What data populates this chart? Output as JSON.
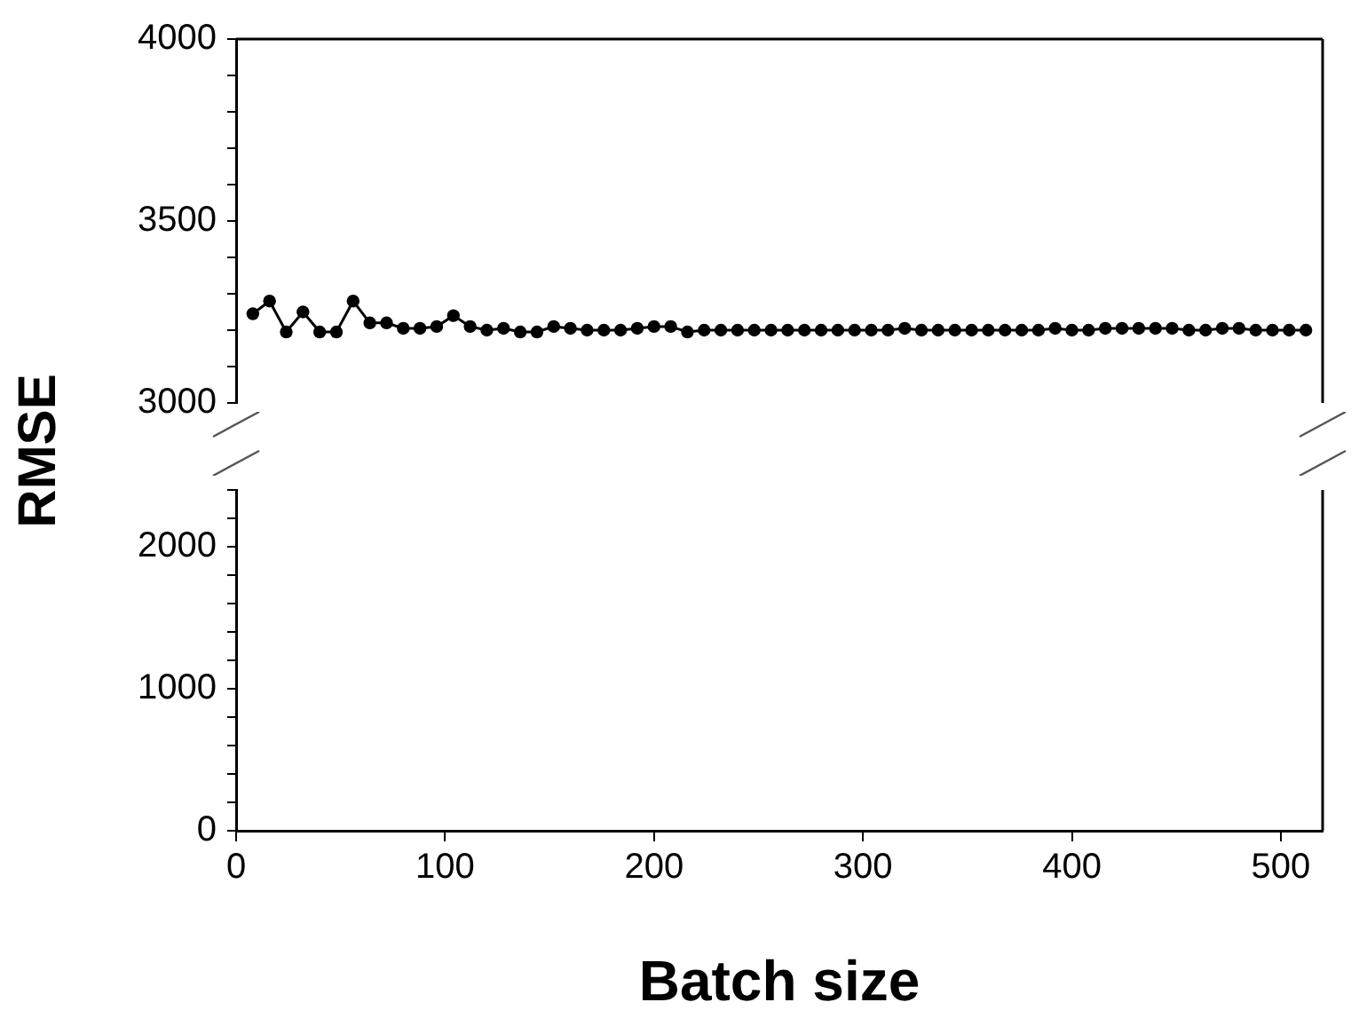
{
  "chart_data": [
    {
      "type": "line",
      "ylabel": "RMSE",
      "marker": "circle",
      "line_style": "solid",
      "color": "#000000",
      "tick_labels": "y",
      "x": [
        8,
        16,
        24,
        32,
        40,
        48,
        56,
        64,
        72,
        80,
        88,
        96,
        104,
        112,
        120,
        128,
        136,
        144,
        152,
        160,
        168,
        176,
        184,
        192,
        200,
        208,
        216,
        224,
        232,
        240,
        248,
        256,
        264,
        272,
        280,
        288,
        296,
        304,
        312,
        320,
        328,
        336,
        344,
        352,
        360,
        368,
        376,
        384,
        392,
        400,
        408,
        416,
        424,
        432,
        440,
        448,
        456,
        464,
        472,
        480,
        488,
        496,
        504,
        512
      ],
      "values": [
        3245,
        3280,
        3195,
        3250,
        3195,
        3195,
        3280,
        3220,
        3220,
        3205,
        3205,
        3210,
        3240,
        3210,
        3200,
        3205,
        3195,
        3195,
        3210,
        3205,
        3200,
        3200,
        3200,
        3205,
        3210,
        3210,
        3195,
        3200,
        3200,
        3200,
        3200,
        3200,
        3200,
        3200,
        3200,
        3200,
        3200,
        3200,
        3200,
        3205,
        3200,
        3200,
        3200,
        3200,
        3200,
        3200,
        3200,
        3200,
        3205,
        3200,
        3200,
        3205,
        3205,
        3205,
        3205,
        3205,
        3200,
        3200,
        3205,
        3205,
        3200,
        3200,
        3200,
        3200
      ],
      "xlim": [
        0,
        520
      ],
      "xticks": [
        0,
        100,
        200,
        300,
        400,
        500
      ],
      "ylim": [
        3000,
        4000
      ],
      "yticks": [
        3000,
        {
          "value": 3100,
          "label": null
        },
        {
          "value": 3200,
          "label": null
        },
        {
          "value": 3300,
          "label": null
        },
        {
          "value": 3400,
          "label": null
        },
        3500,
        {
          "value": 3600,
          "label": null
        },
        {
          "value": 3700,
          "label": null
        },
        {
          "value": 3800,
          "label": null
        },
        {
          "value": 3900,
          "label": null
        },
        4000
      ]
    },
    {
      "type": "line",
      "xlabel": "Batch size",
      "xlim": [
        0,
        520
      ],
      "xticks": [
        0,
        100,
        200,
        300,
        400,
        500
      ],
      "ylim": [
        0,
        2400
      ],
      "yticks": [
        0,
        {
          "value": 200,
          "label": null
        },
        {
          "value": 400,
          "label": null
        },
        {
          "value": 600,
          "label": null
        },
        {
          "value": 800,
          "label": null
        },
        1000,
        {
          "value": 1200,
          "label": null
        },
        {
          "value": 1400,
          "label": null
        },
        {
          "value": 1600,
          "label": null
        },
        {
          "value": 1800,
          "label": null
        },
        2000,
        {
          "value": 2200,
          "label": null
        },
        {
          "value": 2400,
          "label": null
        }
      ]
    }
  ]
}
